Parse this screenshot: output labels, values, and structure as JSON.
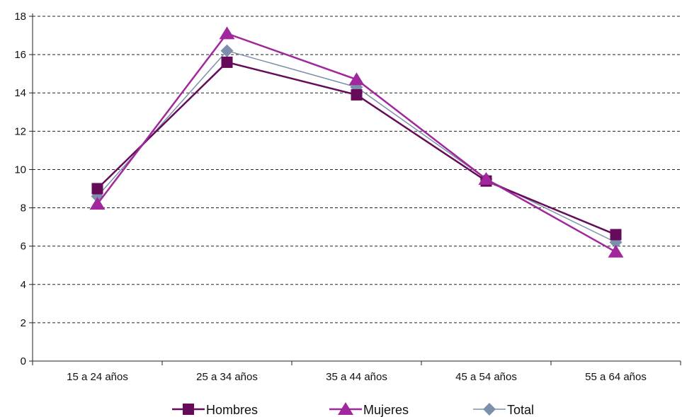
{
  "chart_data": {
    "type": "line",
    "categories": [
      "15 a 24 años",
      "25 a 34 años",
      "35 a 44 años",
      "45 a 54 años",
      "55 a 64 años"
    ],
    "series": [
      {
        "name": "Hombres",
        "values": [
          9.0,
          15.6,
          13.9,
          9.4,
          6.6
        ],
        "color": "#660b5a",
        "marker": "square"
      },
      {
        "name": "Mujeres",
        "values": [
          8.2,
          17.1,
          14.7,
          9.5,
          5.7
        ],
        "color": "#a0289c",
        "marker": "triangle"
      },
      {
        "name": "Total",
        "values": [
          8.6,
          16.2,
          14.3,
          9.5,
          6.2
        ],
        "color": "#7d90ab",
        "marker": "diamond"
      }
    ],
    "ylim": [
      0,
      18
    ],
    "yticks": [
      0,
      2,
      4,
      6,
      8,
      10,
      12,
      14,
      16,
      18
    ],
    "grid": "horizontal dashed",
    "legend_position": "bottom"
  }
}
